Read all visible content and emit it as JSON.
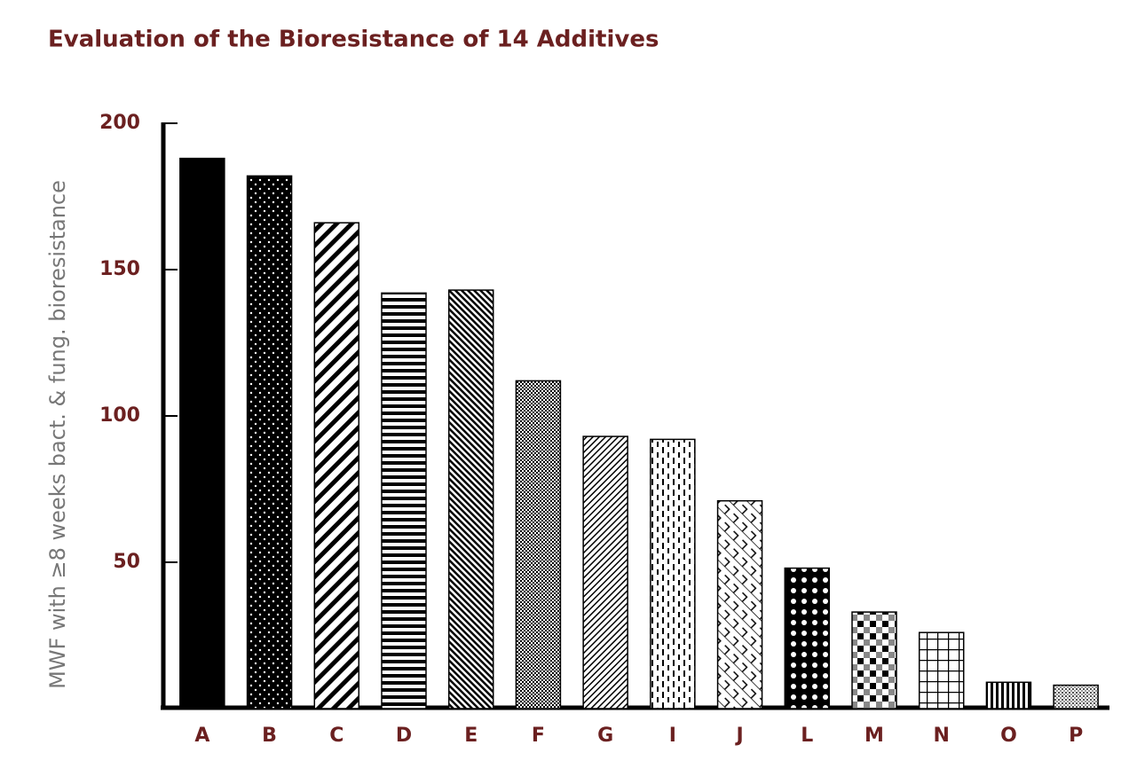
{
  "chart_data": {
    "type": "bar",
    "title": "Evaluation of the Bioresistance of 14 Additives",
    "y_label": "MWF with ≥8 weeks bact. & fung. bioresistance",
    "categories": [
      "A",
      "B",
      "C",
      "D",
      "E",
      "F",
      "G",
      "I",
      "J",
      "L",
      "M",
      "N",
      "O",
      "P"
    ],
    "values": [
      188,
      182,
      166,
      142,
      143,
      112,
      93,
      92,
      71,
      48,
      33,
      26,
      9,
      8
    ],
    "color": "#000000",
    "ylim": [
      0,
      200
    ],
    "yticks": [
      50,
      100,
      150,
      200
    ],
    "grid": false
  }
}
